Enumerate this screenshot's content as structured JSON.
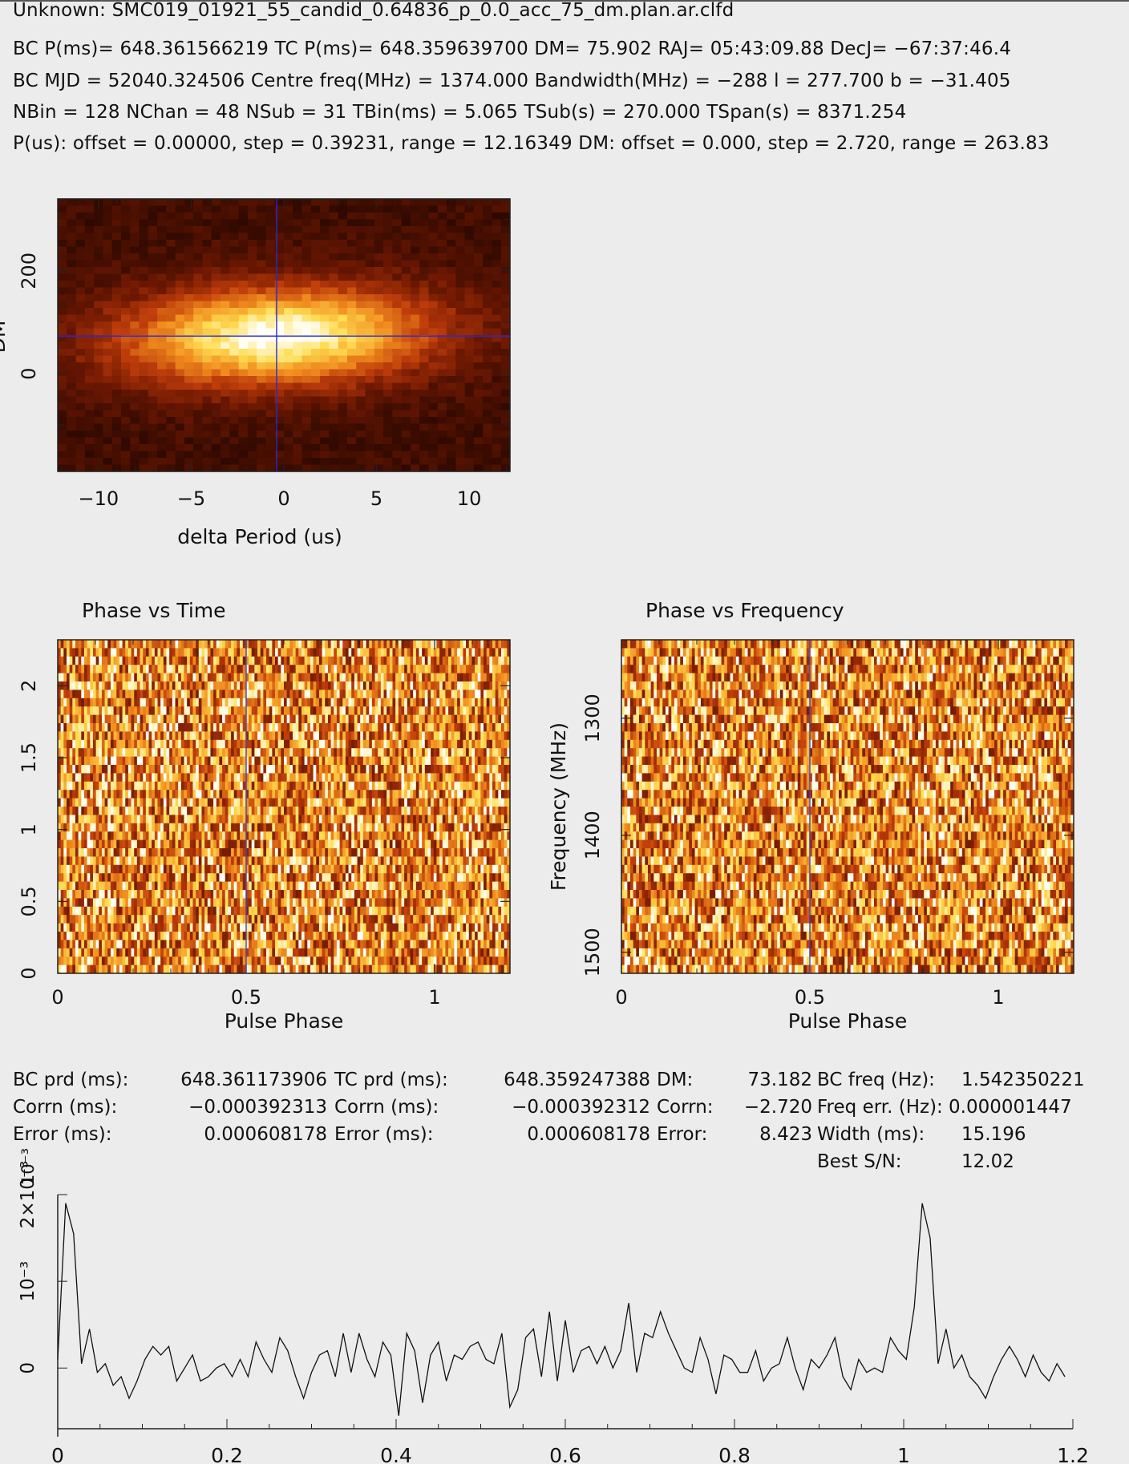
{
  "header": {
    "line0": "Unknown: SMC019_01921_55_candid_0.64836_p_0.0_acc_75_dm.plan.ar.clfd",
    "line1": "BC P(ms)= 648.361566219 TC P(ms)= 648.359639700 DM= 75.902 RAJ= 05:43:09.88 DecJ= −67:37:46.4",
    "line2": "BC MJD = 52040.324506 Centre freq(MHz) = 1374.000 Bandwidth(MHz) = −288 l = 277.700 b = −31.405",
    "line3": "NBin = 128 NChan = 48 NSub = 31 TBin(ms) = 5.065 TSub(s) = 270.000 TSpan(s) = 8371.254",
    "line4": "P(us): offset = 0.00000, step = 0.39231, range = 12.16349 DM: offset = 0.000, step = 2.720, range = 263.83"
  },
  "stats": {
    "c1_labels": [
      "BC prd (ms):",
      "Corrn (ms):",
      "Error (ms):"
    ],
    "c1_values": [
      "648.361173906",
      "−0.000392313",
      "0.000608178"
    ],
    "c2_labels": [
      "TC prd (ms):",
      "Corrn (ms):",
      "Error (ms):"
    ],
    "c2_values": [
      "648.359247388",
      "−0.000392312",
      "0.000608178"
    ],
    "c3_labels": [
      "DM:",
      "Corrn:",
      "Error:"
    ],
    "c3_values": [
      "73.182",
      "−2.720",
      "8.423"
    ],
    "c4_labels": [
      "BC freq (Hz):",
      "Freq err. (Hz):",
      "Width (ms):",
      "Best S/N:"
    ],
    "c4_values": [
      "1.542350221",
      "0.000001447",
      "15.196",
      "12.02"
    ]
  },
  "chart_data": [
    {
      "type": "heatmap",
      "name": "dm-period",
      "xlabel": "delta Period (us)",
      "ylabel": "DM",
      "xlim": [
        -12.2,
        12.2
      ],
      "ylim": [
        -190,
        340
      ],
      "xticks": [
        "−10",
        "−5",
        "0",
        "5",
        "10"
      ],
      "xtick_values": [
        -10,
        -5,
        0,
        5,
        10
      ],
      "yticks": [
        "0",
        "200"
      ],
      "ytick_values": [
        0,
        200
      ],
      "crosshair": {
        "x": -0.39,
        "y": 73.2
      },
      "colors": [
        "#1a0400",
        "#ffffff"
      ]
    },
    {
      "type": "heatmap",
      "name": "phase-vs-time",
      "title": "Phase vs Time",
      "xlabel": "Pulse Phase",
      "ylabel": "",
      "xlim": [
        0,
        1.2
      ],
      "ylim": [
        0,
        2.32
      ],
      "xticks": [
        "0",
        "0.5",
        "1"
      ],
      "xtick_values": [
        0,
        0.5,
        1
      ],
      "yticks": [
        "0",
        "0.5",
        "1",
        "1.5",
        "2"
      ],
      "ytick_values": [
        0,
        0.5,
        1,
        1.5,
        2
      ],
      "marker_x": 0.5
    },
    {
      "type": "heatmap",
      "name": "phase-vs-frequency",
      "title": "Phase vs Frequency",
      "xlabel": "Pulse Phase",
      "ylabel": "Frequency (MHz)",
      "xlim": [
        0,
        1.2
      ],
      "ylim": [
        1518,
        1233
      ],
      "xticks": [
        "0",
        "0.5",
        "1"
      ],
      "xtick_values": [
        0,
        0.5,
        1
      ],
      "yticks": [
        "1300",
        "1400",
        "1500"
      ],
      "ytick_values": [
        1300,
        1400,
        1500
      ],
      "marker_x": 0.5
    },
    {
      "type": "line",
      "name": "pulse-profile",
      "xlabel": "",
      "ylabel": "",
      "xlim": [
        0,
        1.2
      ],
      "ylim": [
        -0.0007,
        0.002
      ],
      "xticks": [
        "0",
        "0.2",
        "0.4",
        "0.6",
        "0.8",
        "1",
        "1.2"
      ],
      "xtick_values": [
        0,
        0.2,
        0.4,
        0.6,
        0.8,
        1,
        1.2
      ],
      "yticks": [
        "0",
        "10⁻³",
        "2×10⁻³"
      ],
      "ytick_values": [
        0,
        0.001,
        0.002
      ],
      "scale_label": "10⁻³",
      "x": [
        0.0,
        0.00937,
        0.01875,
        0.02812,
        0.0375,
        0.04687,
        0.05625,
        0.06562,
        0.075,
        0.08437,
        0.09375,
        0.10312,
        0.1125,
        0.12187,
        0.13125,
        0.14062,
        0.15,
        0.15937,
        0.16875,
        0.17812,
        0.1875,
        0.19687,
        0.20625,
        0.21562,
        0.225,
        0.23437,
        0.24375,
        0.25312,
        0.2625,
        0.27187,
        0.28125,
        0.29062,
        0.3,
        0.30937,
        0.31875,
        0.32812,
        0.3375,
        0.34687,
        0.35625,
        0.36562,
        0.375,
        0.38437,
        0.39375,
        0.40312,
        0.4125,
        0.42187,
        0.43125,
        0.44062,
        0.45,
        0.45937,
        0.46875,
        0.47812,
        0.4875,
        0.49687,
        0.50625,
        0.51562,
        0.525,
        0.53437,
        0.54375,
        0.55312,
        0.5625,
        0.57187,
        0.58125,
        0.59062,
        0.6,
        0.60937,
        0.61875,
        0.62812,
        0.6375,
        0.64687,
        0.65625,
        0.66562,
        0.675,
        0.68437,
        0.69375,
        0.70312,
        0.7125,
        0.72187,
        0.73125,
        0.74062,
        0.75,
        0.75937,
        0.76875,
        0.77812,
        0.7875,
        0.79687,
        0.80625,
        0.81562,
        0.825,
        0.83437,
        0.84375,
        0.85312,
        0.8625,
        0.87187,
        0.88125,
        0.89062,
        0.9,
        0.90937,
        0.91875,
        0.92812,
        0.9375,
        0.94687,
        0.95625,
        0.96562,
        0.975,
        0.98437,
        0.99375,
        1.00312,
        1.0125,
        1.02187,
        1.03125,
        1.04062,
        1.05,
        1.05937,
        1.06875,
        1.07812,
        1.0875,
        1.09687,
        1.10625,
        1.11562,
        1.125,
        1.13437,
        1.14375,
        1.15312,
        1.1625,
        1.17187,
        1.18125,
        1.19062
      ],
      "y": [
        0.0001,
        0.0019,
        0.00155,
        5e-05,
        0.00045,
        -5e-05,
        5e-05,
        -0.0002,
        -0.0001,
        -0.00035,
        -0.00015,
        0.0001,
        0.00025,
        0.00015,
        0.00025,
        -0.00015,
        0.0,
        0.00015,
        -0.00015,
        -0.0001,
        0.0,
        5e-05,
        -0.0001,
        0.0001,
        -0.0001,
        0.0003,
        0.0001,
        -5e-05,
        0.00035,
        0.0002,
        -0.0001,
        -0.00035,
        -5e-05,
        0.00015,
        0.0002,
        -0.0001,
        0.0004,
        -5e-05,
        0.0004,
        0.0001,
        -0.0001,
        0.0003,
        0.00015,
        -0.00055,
        0.0004,
        0.0002,
        -0.0004,
        0.00015,
        0.0003,
        -0.00015,
        0.00015,
        0.0001,
        0.00025,
        0.0003,
        0.0001,
        5e-05,
        0.0004,
        -0.00045,
        -0.00025,
        0.00035,
        0.00045,
        -0.0001,
        0.00065,
        -0.00015,
        0.00055,
        -5e-05,
        0.0002,
        0.00025,
        5e-05,
        0.00025,
        0.0,
        0.0002,
        0.00075,
        -5e-05,
        0.0004,
        0.00035,
        0.00065,
        0.0004,
        0.0002,
        0.0,
        -5e-05,
        0.00035,
        0.0001,
        -0.0003,
        0.00015,
        0.0001,
        -5e-05,
        -5e-05,
        0.0002,
        -0.00015,
        0.0,
        5e-05,
        0.00035,
        0.0,
        -0.00025,
        0.0001,
        0.0,
        0.00015,
        0.00035,
        -0.0001,
        -0.00025,
        0.0001,
        -5e-05,
        0.0,
        -5e-05,
        0.00035,
        0.0002,
        0.0001,
        0.0007,
        0.0019,
        0.0015,
        5e-05,
        0.00045,
        0.0,
        0.00015,
        -0.0001,
        -0.0002,
        -0.00035,
        -0.0001,
        0.0001,
        0.00025,
        0.0001,
        -0.0001,
        0.00015,
        -5e-05,
        -0.00015,
        5e-05,
        -0.0001
      ]
    }
  ]
}
